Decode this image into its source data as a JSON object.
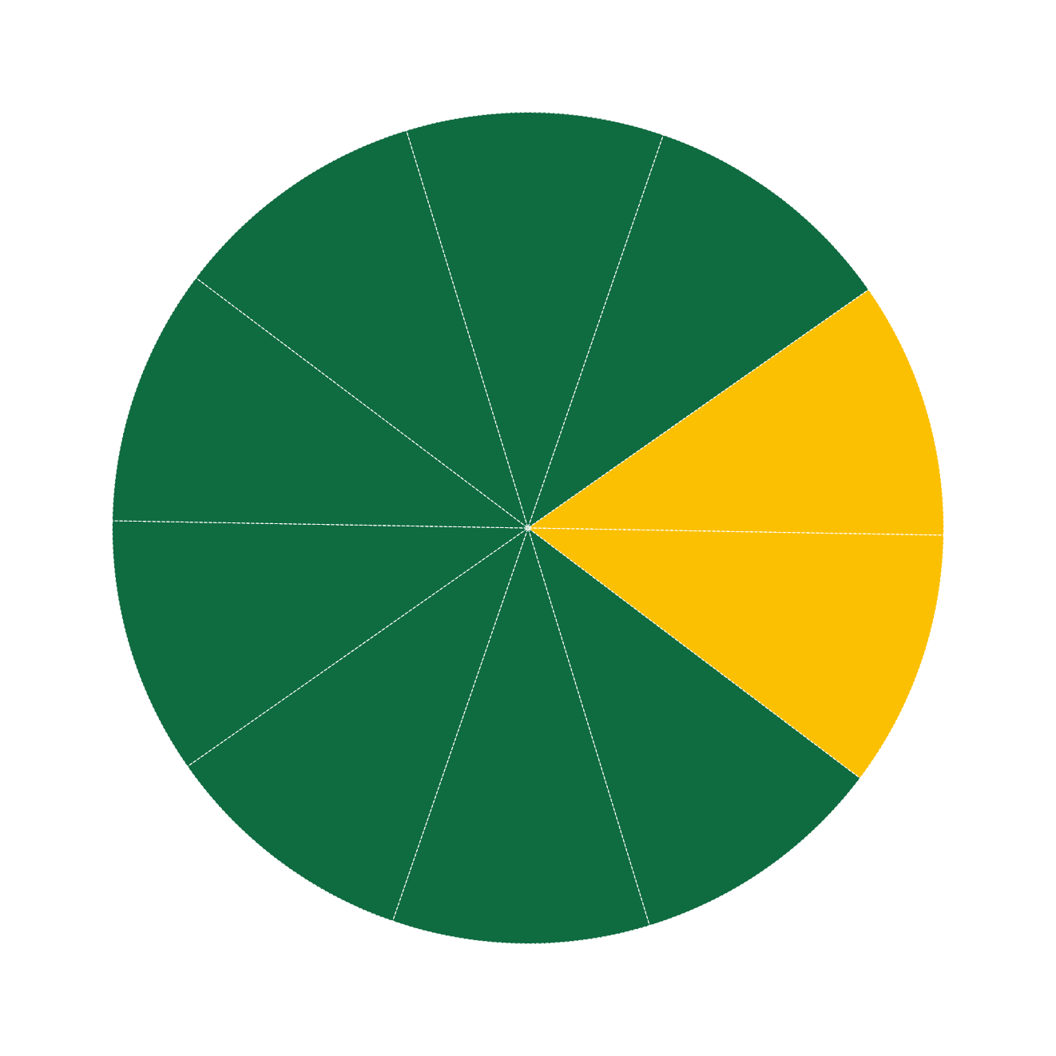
{
  "chart_data": {
    "type": "pie",
    "categories": [
      null,
      null,
      null,
      null,
      null,
      null,
      null,
      null,
      null,
      null
    ],
    "values": [
      10,
      10,
      10,
      10,
      10,
      10,
      10,
      10,
      10,
      10
    ],
    "colors": [
      "#fcc003",
      "#fcc003",
      "#0f6b40",
      "#0f6b40",
      "#0f6b40",
      "#0f6b40",
      "#0f6b40",
      "#0f6b40",
      "#0f6b40",
      "#0f6b40"
    ]
  }
}
